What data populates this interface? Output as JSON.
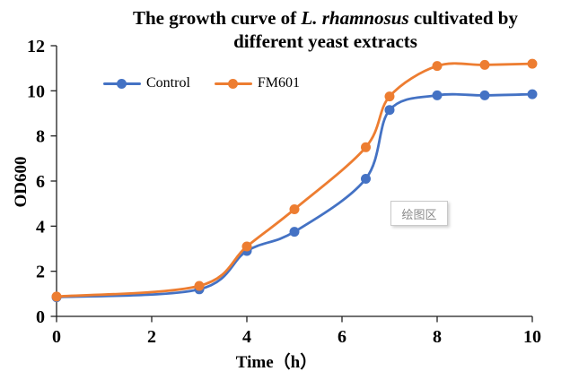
{
  "title": {
    "prefix": "The growth curve of ",
    "species_italic": "L. rhamnosus",
    "suffix": "  cultivated by",
    "line2": "different yeast extracts"
  },
  "legend": {
    "items": [
      {
        "label": "Control",
        "color": "#4472C4"
      },
      {
        "label": "FM601",
        "color": "#ED7D31"
      }
    ]
  },
  "tooltip": {
    "text": "绘图区"
  },
  "colors": {
    "axis": "#1f1f1f",
    "control": "#4472C4",
    "fm601": "#ED7D31"
  },
  "chart_data": {
    "type": "line",
    "title": "The growth curve of L. rhamnosus cultivated by different yeast extracts",
    "xlabel": "Time（h）",
    "ylabel": "OD600",
    "x_ticks": [
      0,
      2,
      4,
      6,
      8,
      10
    ],
    "y_ticks": [
      0,
      2,
      4,
      6,
      8,
      10,
      12
    ],
    "xlim": [
      0,
      10
    ],
    "ylim": [
      0,
      12
    ],
    "grid": false,
    "smooth": true,
    "marker": "circle",
    "legend_position": "top-left-inside",
    "series": [
      {
        "name": "Control",
        "color": "#4472C4",
        "points": [
          [
            0,
            0.85
          ],
          [
            3,
            1.2
          ],
          [
            4,
            2.9
          ],
          [
            5,
            3.75
          ],
          [
            6.5,
            6.1
          ],
          [
            7,
            9.15
          ],
          [
            8,
            9.8
          ],
          [
            9,
            9.8
          ],
          [
            10,
            9.85
          ]
        ]
      },
      {
        "name": "FM601",
        "color": "#ED7D31",
        "points": [
          [
            0,
            0.88
          ],
          [
            3,
            1.35
          ],
          [
            4,
            3.1
          ],
          [
            5,
            4.75
          ],
          [
            6.5,
            7.5
          ],
          [
            7,
            9.75
          ],
          [
            8,
            11.1
          ],
          [
            9,
            11.15
          ],
          [
            10,
            11.2
          ]
        ]
      }
    ]
  }
}
